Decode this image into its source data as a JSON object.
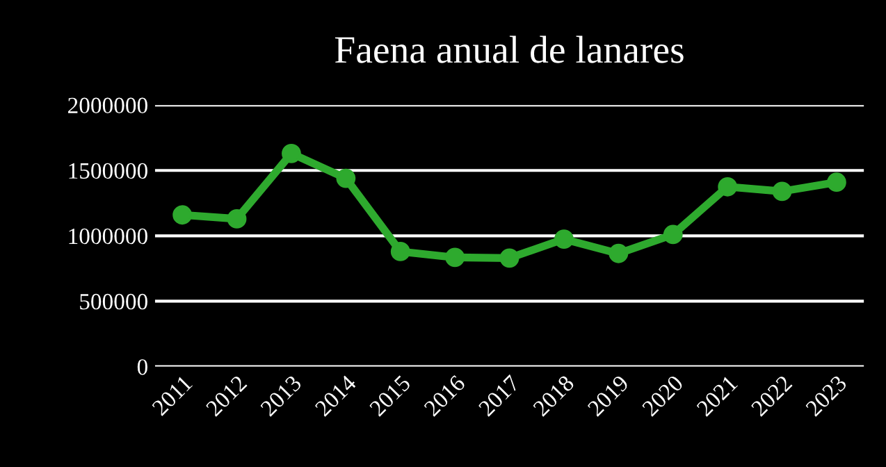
{
  "chart_data": {
    "type": "line",
    "title": "Faena anual de lanares",
    "categories": [
      "2011",
      "2012",
      "2013",
      "2014",
      "2015",
      "2016",
      "2017",
      "2018",
      "2019",
      "2020",
      "2021",
      "2022",
      "2023"
    ],
    "series": [
      {
        "color": "#2eaa2e",
        "values": [
          1160000,
          1130000,
          1630000,
          1440000,
          880000,
          835000,
          830000,
          975000,
          865000,
          1010000,
          1375000,
          1340000,
          1410000
        ]
      }
    ],
    "ylim": [
      0,
      2000000
    ],
    "yticks": [
      0,
      500000,
      1000000,
      1500000,
      2000000
    ],
    "grid": "y",
    "marker": "circle",
    "line_style": "solid",
    "legend": false
  }
}
